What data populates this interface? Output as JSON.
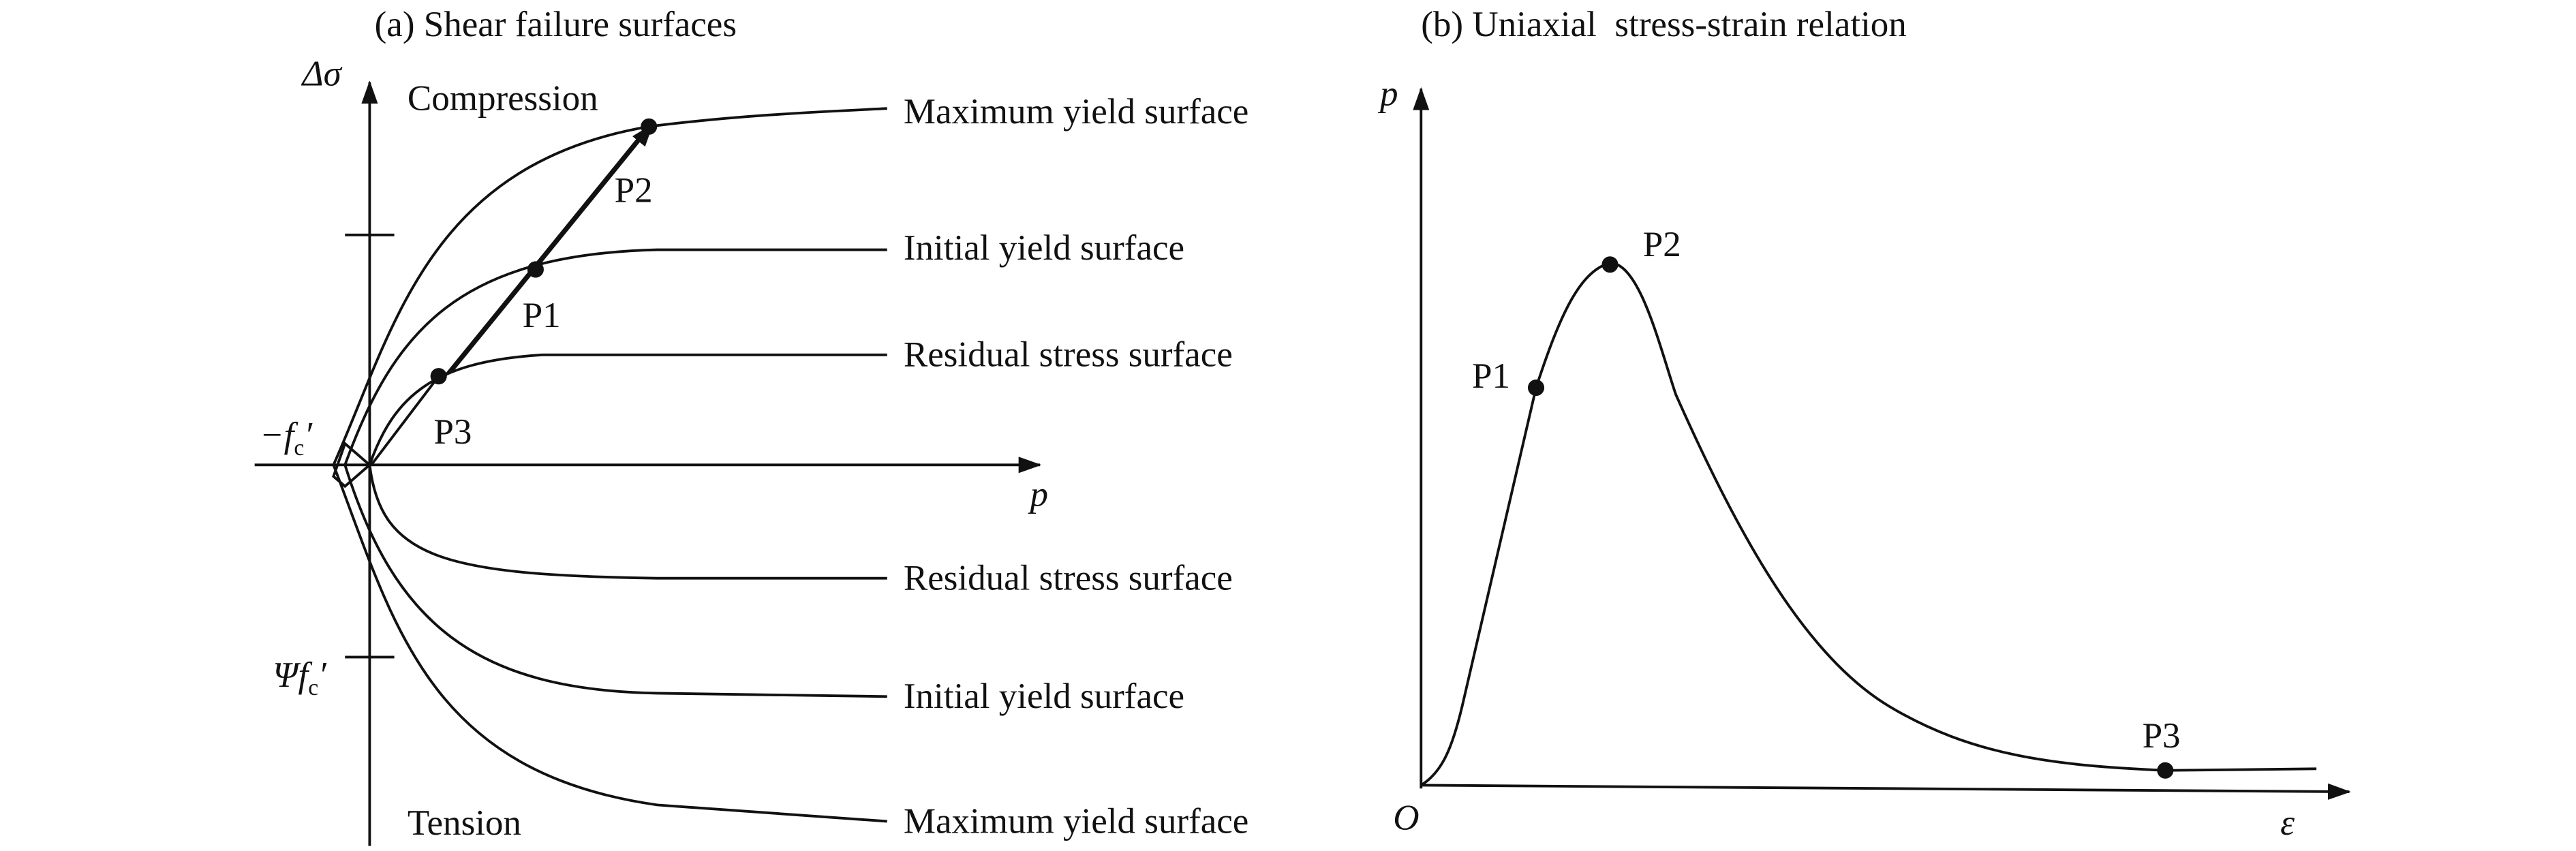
{
  "panel_a": {
    "title": "(a) Shear failure surfaces",
    "y_axis_label": "Δσ",
    "x_axis_label": "p",
    "compression_label": "Compression",
    "tension_label": "Tension",
    "neg_fc": {
      "base": "−f",
      "sub": "c",
      "prime": "′"
    },
    "psi_fc": {
      "base": "Ψf",
      "sub": "c",
      "prime": "′"
    },
    "upper_curves": [
      "Maximum yield surface",
      "Initial yield surface",
      "Residual stress surface"
    ],
    "lower_curves": [
      "Residual stress surface",
      "Initial yield surface",
      "Maximum yield surface"
    ],
    "points": [
      "P1",
      "P2",
      "P3"
    ]
  },
  "panel_b": {
    "title": "(b) Uniaxial  stress-strain relation",
    "y_axis_label": "p",
    "x_axis_label": "ε",
    "origin_label": "O",
    "points": [
      "P1",
      "P2",
      "P3"
    ]
  }
}
